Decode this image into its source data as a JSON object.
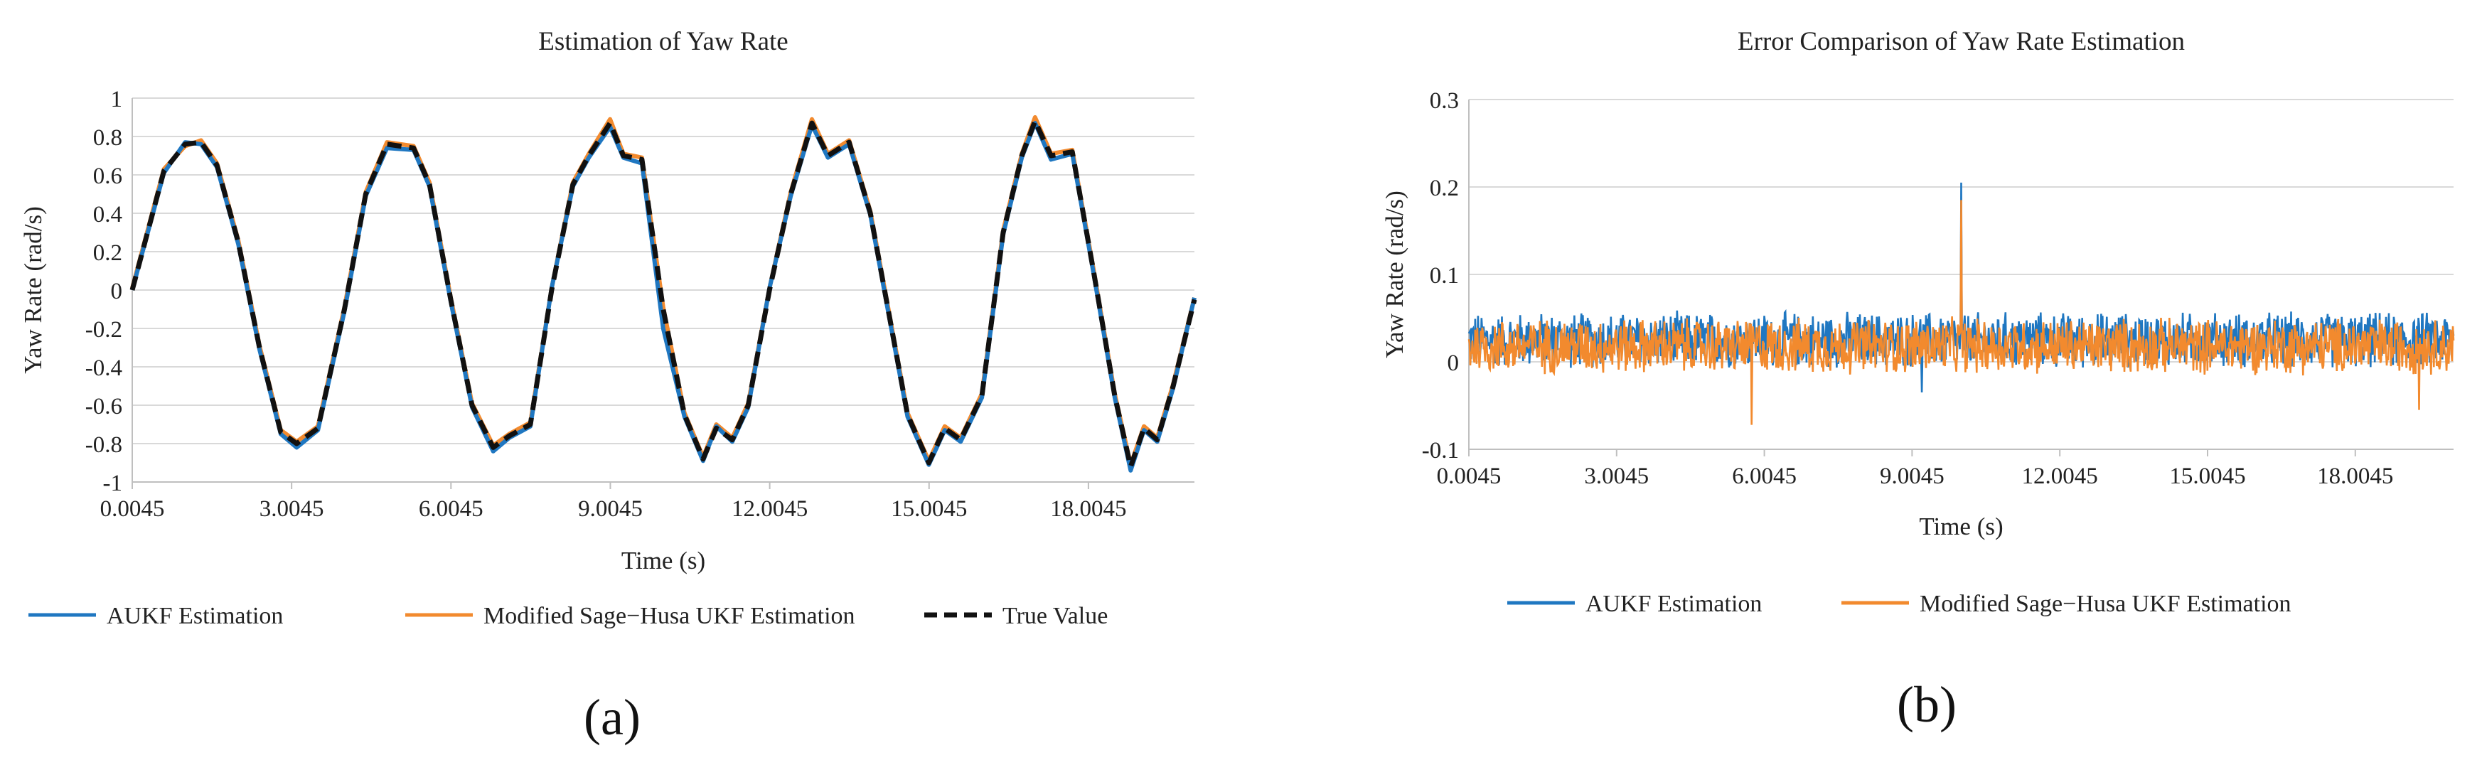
{
  "chart_data": [
    {
      "panel_label": "(a)",
      "type": "line",
      "title": "Estimation of Yaw Rate",
      "xlabel": "Time (s)",
      "ylabel": "Yaw Rate (rad/s)",
      "xlim": [
        0.0045,
        20.0
      ],
      "ylim": [
        -1,
        1
      ],
      "xticks": [
        0.0045,
        3.0045,
        6.0045,
        9.0045,
        12.0045,
        15.0045,
        18.0045
      ],
      "xtick_labels": [
        "0.0045",
        "3.0045",
        "6.0045",
        "9.0045",
        "12.0045",
        "15.0045",
        "18.0045"
      ],
      "yticks": [
        -1,
        -0.8,
        -0.6,
        -0.4,
        -0.2,
        0,
        0.2,
        0.4,
        0.6,
        0.8,
        1
      ],
      "ytick_labels": [
        "-1",
        "-0.8",
        "-0.6",
        "-0.4",
        "-0.2",
        "0",
        "0.2",
        "0.4",
        "0.6",
        "0.8",
        "1"
      ],
      "grid": "horizontal",
      "legend_position": "bottom",
      "x": [
        0.0045,
        0.6,
        1.0,
        1.3,
        1.6,
        2.0,
        2.4,
        2.8,
        3.1,
        3.5,
        4.0,
        4.4,
        4.8,
        5.3,
        5.6,
        6.0,
        6.4,
        6.8,
        7.1,
        7.5,
        7.9,
        8.3,
        8.6,
        9.0,
        9.25,
        9.6,
        10.0,
        10.4,
        10.75,
        11.0,
        11.3,
        11.6,
        12.0,
        12.4,
        12.8,
        13.1,
        13.5,
        13.9,
        14.3,
        14.6,
        15.0,
        15.3,
        15.6,
        16.0,
        16.4,
        16.75,
        17.0,
        17.3,
        17.7,
        18.1,
        18.5,
        18.8,
        19.05,
        19.3,
        19.6,
        20.0
      ],
      "series": [
        {
          "name": "True Value",
          "color": "#111111",
          "dash": true,
          "values": [
            0.0,
            0.62,
            0.76,
            0.77,
            0.65,
            0.25,
            -0.3,
            -0.74,
            -0.8,
            -0.72,
            -0.1,
            0.5,
            0.76,
            0.74,
            0.55,
            -0.05,
            -0.6,
            -0.82,
            -0.76,
            -0.7,
            0.0,
            0.55,
            0.7,
            0.87,
            0.7,
            0.68,
            -0.1,
            -0.65,
            -0.88,
            -0.72,
            -0.78,
            -0.6,
            0.0,
            0.5,
            0.87,
            0.7,
            0.77,
            0.4,
            -0.2,
            -0.65,
            -0.9,
            -0.72,
            -0.78,
            -0.55,
            0.3,
            0.7,
            0.88,
            0.7,
            0.72,
            0.1,
            -0.55,
            -0.92,
            -0.72,
            -0.78,
            -0.5,
            -0.05
          ]
        },
        {
          "name": "AUKF Estimation",
          "color": "#1f77c1",
          "dash": false,
          "values": [
            0.0,
            0.61,
            0.77,
            0.76,
            0.64,
            0.24,
            -0.31,
            -0.75,
            -0.82,
            -0.73,
            -0.11,
            0.49,
            0.74,
            0.73,
            0.54,
            -0.06,
            -0.61,
            -0.84,
            -0.77,
            -0.71,
            0.01,
            0.54,
            0.69,
            0.85,
            0.69,
            0.66,
            -0.2,
            -0.66,
            -0.89,
            -0.71,
            -0.79,
            -0.61,
            0.01,
            0.49,
            0.86,
            0.69,
            0.76,
            0.39,
            -0.21,
            -0.66,
            -0.91,
            -0.73,
            -0.79,
            -0.56,
            0.29,
            0.69,
            0.87,
            0.68,
            0.71,
            0.09,
            -0.56,
            -0.94,
            -0.73,
            -0.79,
            -0.51,
            -0.04
          ]
        },
        {
          "name": "Modified Sage−Husa UKF Estimation",
          "color": "#f28a2e",
          "dash": false,
          "values": [
            0.01,
            0.63,
            0.75,
            0.78,
            0.66,
            0.26,
            -0.29,
            -0.73,
            -0.79,
            -0.71,
            -0.09,
            0.51,
            0.77,
            0.75,
            0.56,
            -0.04,
            -0.59,
            -0.81,
            -0.75,
            -0.69,
            0.01,
            0.56,
            0.71,
            0.89,
            0.71,
            0.69,
            -0.09,
            -0.64,
            -0.87,
            -0.7,
            -0.77,
            -0.59,
            0.01,
            0.51,
            0.89,
            0.71,
            0.78,
            0.41,
            -0.19,
            -0.64,
            -0.89,
            -0.71,
            -0.77,
            -0.54,
            0.31,
            0.71,
            0.9,
            0.71,
            0.73,
            0.11,
            -0.54,
            -0.91,
            -0.71,
            -0.77,
            -0.49,
            -0.04
          ]
        }
      ]
    },
    {
      "panel_label": "(b)",
      "type": "line",
      "title": "Error Comparison of Yaw Rate Estimation",
      "xlabel": "Time (s)",
      "ylabel": "Yaw Rate (rad/s)",
      "xlim": [
        0.0045,
        20.0
      ],
      "ylim": [
        -0.1,
        0.3
      ],
      "xticks": [
        0.0045,
        3.0045,
        6.0045,
        9.0045,
        12.0045,
        15.0045,
        18.0045
      ],
      "xtick_labels": [
        "0.0045",
        "3.0045",
        "6.0045",
        "9.0045",
        "12.0045",
        "15.0045",
        "18.0045"
      ],
      "yticks": [
        -0.1,
        0,
        0.1,
        0.2,
        0.3
      ],
      "ytick_labels": [
        "-0.1",
        "0",
        "0.1",
        "0.2",
        "0.3"
      ],
      "grid": "horizontal",
      "legend_position": "bottom",
      "series": [
        {
          "name": "AUKF Estimation",
          "color": "#1f77c1",
          "mean": 0.025,
          "amplitude": 0.035,
          "spikes": [
            {
              "x": 10.0,
              "y": 0.205
            },
            {
              "x": 9.2,
              "y": -0.035
            }
          ]
        },
        {
          "name": "Modified Sage−Husa UKF Estimation",
          "color": "#f28a2e",
          "mean": 0.018,
          "amplitude": 0.035,
          "spikes": [
            {
              "x": 10.0,
              "y": 0.185
            },
            {
              "x": 5.75,
              "y": -0.072
            },
            {
              "x": 19.3,
              "y": -0.055
            }
          ]
        }
      ]
    }
  ]
}
